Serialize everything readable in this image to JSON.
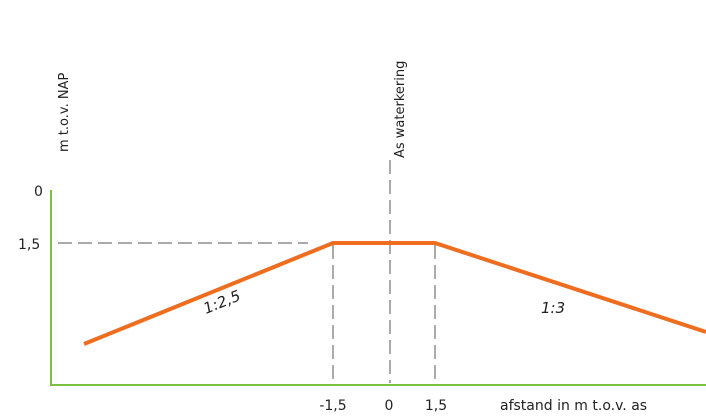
{
  "colors": {
    "axis": "#7cc242",
    "profile": "#ef6d1f",
    "guide": "#555555",
    "text": "#222222"
  },
  "y_axis": {
    "title": "m t.o.v. NAP",
    "ticks": [
      "0",
      "1,5"
    ]
  },
  "x_axis": {
    "title": "afstand in m t.o.v. as",
    "ticks": [
      "-1,5",
      "0",
      "1,5"
    ]
  },
  "center_line_label": "As waterkering",
  "slopes": {
    "left": "1:2,5",
    "right": "1:3"
  },
  "profile": {
    "crest_half_width_m": 1.5,
    "crest_level_label": "1,5",
    "left_slope_ratio": 2.5,
    "right_slope_ratio": 3
  }
}
